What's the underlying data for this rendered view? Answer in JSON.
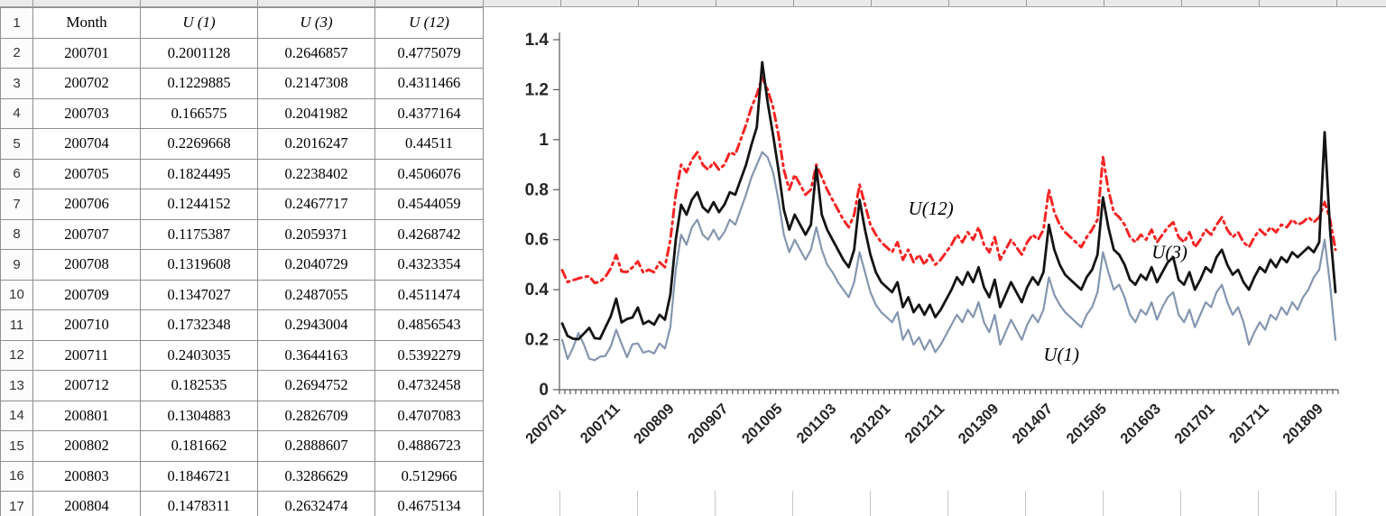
{
  "spreadsheet": {
    "table": {
      "header": [
        "Month",
        "U (1)",
        "U (3)",
        "U (12)"
      ],
      "rows": [
        [
          "200701",
          "0.2001128",
          "0.2646857",
          "0.4775079"
        ],
        [
          "200702",
          "0.1229885",
          "0.2147308",
          "0.4311466"
        ],
        [
          "200703",
          "0.166575",
          "0.2041982",
          "0.4377164"
        ],
        [
          "200704",
          "0.2269668",
          "0.2016247",
          "0.44511"
        ],
        [
          "200705",
          "0.1824495",
          "0.2238402",
          "0.4506076"
        ],
        [
          "200706",
          "0.1244152",
          "0.2467717",
          "0.4544059"
        ],
        [
          "200707",
          "0.1175387",
          "0.2059371",
          "0.4268742"
        ],
        [
          "200708",
          "0.1319608",
          "0.2040729",
          "0.4323354"
        ],
        [
          "200709",
          "0.1347027",
          "0.2487055",
          "0.4511474"
        ],
        [
          "200710",
          "0.1732348",
          "0.2943004",
          "0.4856543"
        ],
        [
          "200711",
          "0.2403035",
          "0.3644163",
          "0.5392279"
        ],
        [
          "200712",
          "0.182535",
          "0.2694752",
          "0.4732458"
        ],
        [
          "200801",
          "0.1304883",
          "0.2826709",
          "0.4707083"
        ],
        [
          "200802",
          "0.181662",
          "0.2888607",
          "0.4886723"
        ],
        [
          "200803",
          "0.1846721",
          "0.3286629",
          "0.512966"
        ],
        [
          "200804",
          "0.1478311",
          "0.2632474",
          "0.4675134"
        ]
      ]
    }
  },
  "chart_data": {
    "type": "line",
    "title": "",
    "xlabel": "",
    "ylabel": "",
    "ylim": [
      0,
      1.4
    ],
    "grid": false,
    "legend": "none",
    "y_ticks": [
      {
        "v": 0,
        "label": "0"
      },
      {
        "v": 0.2,
        "label": "0.2"
      },
      {
        "v": 0.4,
        "label": "0.4"
      },
      {
        "v": 0.6,
        "label": "0.6"
      },
      {
        "v": 0.8,
        "label": "0.8"
      },
      {
        "v": 1.0,
        "label": "1"
      },
      {
        "v": 1.2,
        "label": "1.2"
      },
      {
        "v": 1.4,
        "label": "1.4"
      }
    ],
    "x_tick_labels": [
      "200701",
      "200711",
      "200809",
      "200907",
      "201005",
      "201103",
      "201201",
      "201211",
      "201309",
      "201407",
      "201505",
      "201603",
      "201701",
      "201711",
      "201809"
    ],
    "x_tick_every": 10,
    "series": [
      {
        "name": "U(12)",
        "color": "#f62423",
        "width": 3,
        "dash": "9 5 2.5 5",
        "values": [
          0.478,
          0.431,
          0.438,
          0.445,
          0.451,
          0.454,
          0.427,
          0.432,
          0.451,
          0.486,
          0.539,
          0.473,
          0.471,
          0.489,
          0.513,
          0.468,
          0.48,
          0.47,
          0.51,
          0.49,
          0.6,
          0.78,
          0.9,
          0.87,
          0.92,
          0.95,
          0.9,
          0.88,
          0.91,
          0.88,
          0.9,
          0.95,
          0.94,
          1.0,
          1.06,
          1.13,
          1.18,
          1.25,
          1.2,
          1.13,
          1.02,
          0.88,
          0.8,
          0.86,
          0.82,
          0.78,
          0.8,
          0.9,
          0.85,
          0.8,
          0.76,
          0.72,
          0.68,
          0.65,
          0.7,
          0.82,
          0.74,
          0.66,
          0.62,
          0.59,
          0.57,
          0.55,
          0.59,
          0.52,
          0.56,
          0.51,
          0.54,
          0.5,
          0.54,
          0.5,
          0.52,
          0.55,
          0.58,
          0.62,
          0.59,
          0.63,
          0.6,
          0.65,
          0.58,
          0.55,
          0.61,
          0.52,
          0.56,
          0.6,
          0.57,
          0.54,
          0.59,
          0.62,
          0.6,
          0.64,
          0.8,
          0.71,
          0.66,
          0.63,
          0.61,
          0.59,
          0.57,
          0.61,
          0.64,
          0.68,
          0.93,
          0.8,
          0.71,
          0.69,
          0.66,
          0.61,
          0.59,
          0.62,
          0.6,
          0.64,
          0.59,
          0.62,
          0.65,
          0.67,
          0.61,
          0.59,
          0.63,
          0.57,
          0.6,
          0.64,
          0.62,
          0.66,
          0.69,
          0.64,
          0.61,
          0.63,
          0.59,
          0.57,
          0.61,
          0.64,
          0.62,
          0.65,
          0.63,
          0.66,
          0.65,
          0.68,
          0.66,
          0.67,
          0.69,
          0.67,
          0.69,
          0.75,
          0.68,
          0.56
        ]
      },
      {
        "name": "U(1)",
        "color": "#8496b0",
        "width": 2.2,
        "dash": "",
        "values": [
          0.2,
          0.123,
          0.167,
          0.227,
          0.182,
          0.124,
          0.118,
          0.132,
          0.135,
          0.173,
          0.24,
          0.183,
          0.13,
          0.182,
          0.185,
          0.148,
          0.155,
          0.145,
          0.185,
          0.165,
          0.25,
          0.48,
          0.62,
          0.58,
          0.65,
          0.68,
          0.62,
          0.6,
          0.64,
          0.6,
          0.63,
          0.68,
          0.66,
          0.72,
          0.78,
          0.85,
          0.9,
          0.95,
          0.93,
          0.87,
          0.76,
          0.62,
          0.55,
          0.6,
          0.56,
          0.52,
          0.56,
          0.65,
          0.56,
          0.5,
          0.47,
          0.43,
          0.4,
          0.37,
          0.43,
          0.55,
          0.47,
          0.39,
          0.34,
          0.31,
          0.29,
          0.27,
          0.31,
          0.2,
          0.24,
          0.18,
          0.21,
          0.16,
          0.2,
          0.15,
          0.18,
          0.22,
          0.26,
          0.3,
          0.27,
          0.32,
          0.29,
          0.35,
          0.27,
          0.23,
          0.3,
          0.18,
          0.23,
          0.28,
          0.24,
          0.2,
          0.26,
          0.3,
          0.27,
          0.32,
          0.45,
          0.38,
          0.34,
          0.31,
          0.29,
          0.27,
          0.25,
          0.3,
          0.33,
          0.39,
          0.55,
          0.47,
          0.4,
          0.42,
          0.37,
          0.3,
          0.27,
          0.32,
          0.3,
          0.35,
          0.28,
          0.33,
          0.37,
          0.39,
          0.3,
          0.27,
          0.32,
          0.25,
          0.3,
          0.35,
          0.33,
          0.39,
          0.42,
          0.35,
          0.3,
          0.33,
          0.27,
          0.18,
          0.23,
          0.27,
          0.24,
          0.3,
          0.28,
          0.33,
          0.3,
          0.35,
          0.32,
          0.37,
          0.4,
          0.45,
          0.48,
          0.6,
          0.42,
          0.2
        ]
      },
      {
        "name": "U(3)",
        "color": "#141414",
        "width": 2.8,
        "dash": "",
        "values": [
          0.265,
          0.215,
          0.204,
          0.202,
          0.224,
          0.247,
          0.206,
          0.204,
          0.249,
          0.294,
          0.364,
          0.269,
          0.283,
          0.289,
          0.329,
          0.263,
          0.275,
          0.26,
          0.3,
          0.28,
          0.38,
          0.6,
          0.74,
          0.7,
          0.76,
          0.79,
          0.73,
          0.71,
          0.75,
          0.71,
          0.74,
          0.79,
          0.78,
          0.84,
          0.9,
          0.98,
          1.05,
          1.31,
          1.15,
          1.02,
          0.88,
          0.72,
          0.64,
          0.7,
          0.66,
          0.62,
          0.66,
          0.89,
          0.7,
          0.64,
          0.6,
          0.56,
          0.52,
          0.49,
          0.56,
          0.76,
          0.64,
          0.54,
          0.47,
          0.43,
          0.41,
          0.39,
          0.43,
          0.33,
          0.37,
          0.31,
          0.34,
          0.3,
          0.34,
          0.29,
          0.32,
          0.36,
          0.4,
          0.45,
          0.42,
          0.47,
          0.43,
          0.49,
          0.41,
          0.37,
          0.44,
          0.33,
          0.38,
          0.43,
          0.39,
          0.35,
          0.41,
          0.45,
          0.42,
          0.47,
          0.66,
          0.56,
          0.5,
          0.46,
          0.44,
          0.42,
          0.4,
          0.45,
          0.48,
          0.54,
          0.77,
          0.65,
          0.56,
          0.54,
          0.5,
          0.44,
          0.42,
          0.46,
          0.44,
          0.49,
          0.43,
          0.47,
          0.51,
          0.53,
          0.44,
          0.42,
          0.47,
          0.4,
          0.44,
          0.49,
          0.47,
          0.53,
          0.56,
          0.5,
          0.46,
          0.48,
          0.43,
          0.4,
          0.45,
          0.49,
          0.47,
          0.52,
          0.49,
          0.53,
          0.51,
          0.55,
          0.53,
          0.55,
          0.57,
          0.55,
          0.59,
          1.03,
          0.64,
          0.39
        ]
      }
    ],
    "annotations": [
      {
        "text": "U(12)",
        "month_index": 64,
        "value": 0.7
      },
      {
        "text": "U(3)",
        "month_index": 109,
        "value": 0.525
      },
      {
        "text": "U(1)",
        "month_index": 89,
        "value": 0.115
      }
    ]
  }
}
